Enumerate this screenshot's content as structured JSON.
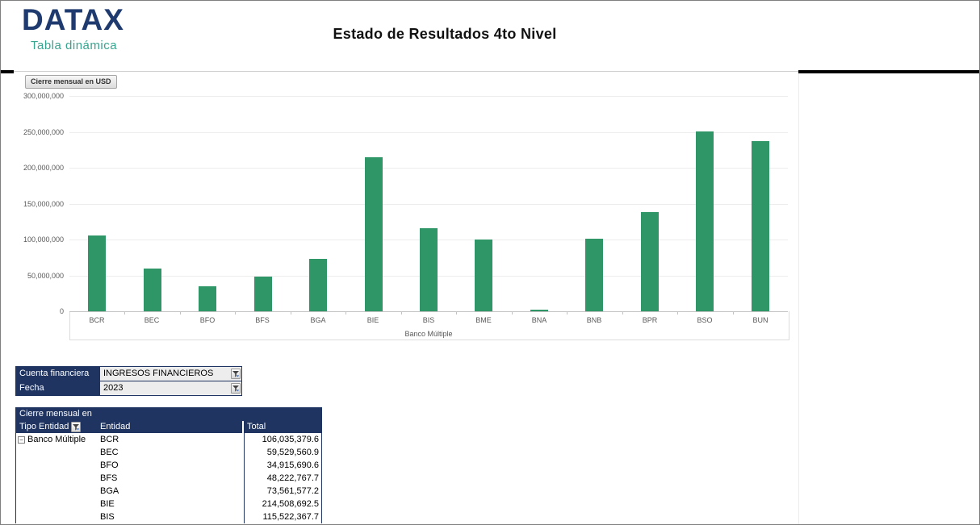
{
  "header": {
    "logo_text": "DATAX",
    "logo_subtitle": "Tabla dinámica",
    "title": "Estado de Resultados 4to Nivel"
  },
  "colors": {
    "navy": "#1f3461",
    "logo_navy": "#1e3a6e",
    "teal": "#36a48e",
    "bar_green": "#2f9767"
  },
  "chart_data": {
    "type": "bar",
    "field_button_label": "Cierre mensual en USD",
    "categories": [
      "BCR",
      "BEC",
      "BFO",
      "BFS",
      "BGA",
      "BIE",
      "BIS",
      "BME",
      "BNA",
      "BNB",
      "BPR",
      "BSO",
      "BUN"
    ],
    "values": [
      106035379.6,
      59529560.9,
      34915690.6,
      48222767.7,
      73561577.2,
      214508692.5,
      115522367.7,
      100300000,
      1900000,
      100800000,
      138400000,
      250300000,
      236600000
    ],
    "title": "",
    "xlabel": "Banco Múltiple",
    "ylabel": "",
    "ylim": [
      0,
      300000000
    ],
    "y_ticks": [
      "0",
      "50,000,000",
      "100,000,000",
      "150,000,000",
      "200,000,000",
      "250,000,000",
      "300,000,000"
    ],
    "grid": true,
    "legend": false,
    "bar_color": "#2f9767"
  },
  "filters": {
    "rows": [
      {
        "label": "Cuenta financiera",
        "value": "INGRESOS FINANCIEROS"
      },
      {
        "label": "Fecha",
        "value": "2023"
      }
    ]
  },
  "pivot_table": {
    "title": "Cierre mensual en",
    "col1_header": "Tipo Entidad",
    "col2_header": "Entidad",
    "col3_header": "Total",
    "group_label": "Banco Múltiple",
    "collapse_glyph": "−",
    "rows": [
      {
        "entidad": "BCR",
        "total": "106,035,379.6"
      },
      {
        "entidad": "BEC",
        "total": "59,529,560.9"
      },
      {
        "entidad": "BFO",
        "total": "34,915,690.6"
      },
      {
        "entidad": "BFS",
        "total": "48,222,767.7"
      },
      {
        "entidad": "BGA",
        "total": "73,561,577.2"
      },
      {
        "entidad": "BIE",
        "total": "214,508,692.5"
      },
      {
        "entidad": "BIS",
        "total": "115,522,367.7"
      }
    ]
  }
}
